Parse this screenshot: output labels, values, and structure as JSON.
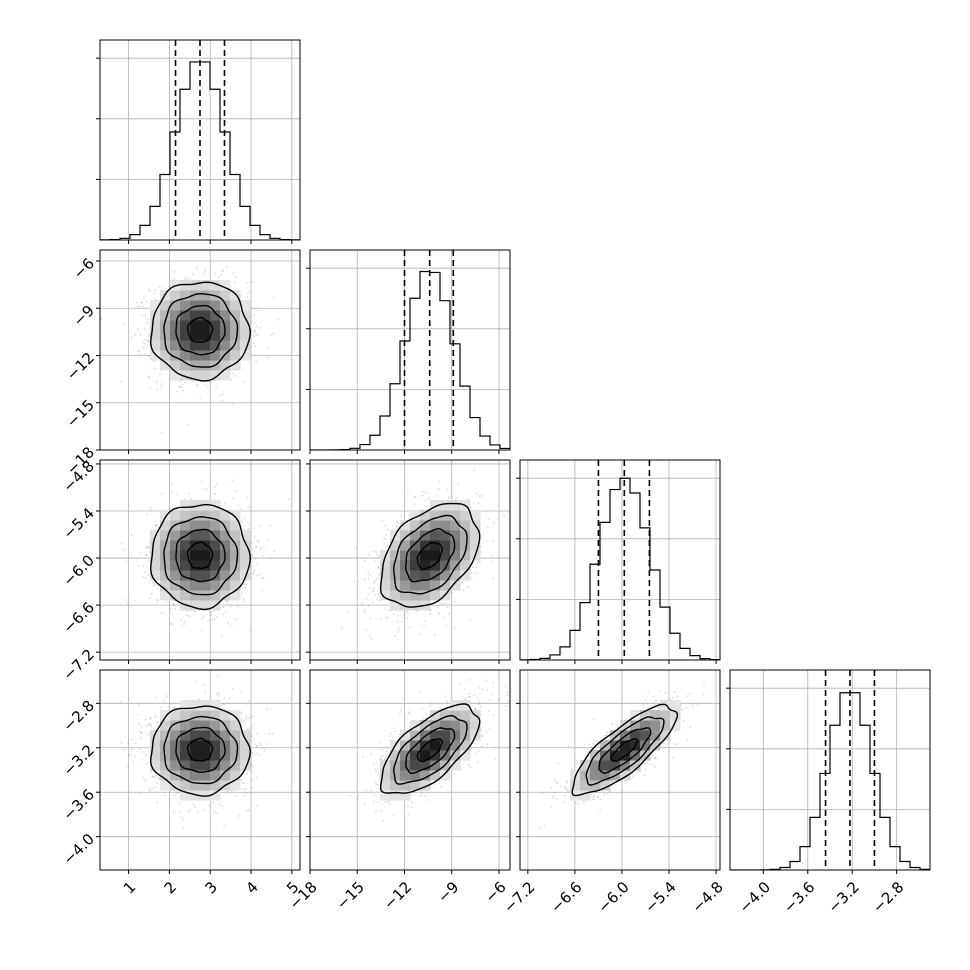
{
  "chart_data": {
    "type": "corner",
    "parameters": [
      {
        "range": [
          0.3,
          5.2
        ],
        "ticks": [
          1,
          2,
          3,
          4,
          5
        ],
        "tick_labels": [
          "1",
          "2",
          "3",
          "4",
          "5"
        ],
        "mean": 2.75,
        "sd": 0.6,
        "quantiles": [
          2.15,
          2.75,
          3.35
        ],
        "hist_peak": 1.0,
        "hist_ylim": [
          0,
          1.1
        ]
      },
      {
        "range": [
          -18,
          -5.3
        ],
        "ticks": [
          -18,
          -15,
          -12,
          -9,
          -6
        ],
        "tick_labels": [
          "−18",
          "−15",
          "−12",
          "−9",
          "−6"
        ],
        "mean": -10.4,
        "sd": 1.55,
        "quantiles": [
          -12.0,
          -10.4,
          -8.9
        ],
        "hist_peak": 1.0,
        "hist_ylim": [
          0,
          1.1
        ]
      },
      {
        "range": [
          -7.3,
          -4.75
        ],
        "ticks": [
          -7.2,
          -6.6,
          -6.0,
          -5.4,
          -4.8
        ],
        "tick_labels": [
          "−7.2",
          "−6.6",
          "−6.0",
          "−5.4",
          "−4.8"
        ],
        "mean": -5.97,
        "sd": 0.33,
        "quantiles": [
          -6.3,
          -5.97,
          -5.65
        ],
        "hist_peak": 1.0,
        "hist_ylim": [
          0,
          1.1
        ]
      },
      {
        "range": [
          -4.3,
          -2.5
        ],
        "ticks": [
          -4.0,
          -3.6,
          -3.2,
          -2.8
        ],
        "tick_labels": [
          "−4.0",
          "−3.6",
          "−3.2",
          "−2.8"
        ],
        "mean": -3.22,
        "sd": 0.2,
        "quantiles": [
          -3.44,
          -3.22,
          -3.0
        ],
        "hist_peak": 1.0,
        "hist_ylim": [
          0,
          1.1
        ]
      }
    ],
    "correlations": {
      "1-0": 0.0,
      "2-0": 0.0,
      "3-0": 0.0,
      "2-1": 0.4,
      "3-1": 0.65,
      "3-2": 0.8
    },
    "hist_bins": 20,
    "grid": true,
    "quantile_style": "dashed",
    "sample_color": "#999999",
    "line_color": "#000000"
  }
}
